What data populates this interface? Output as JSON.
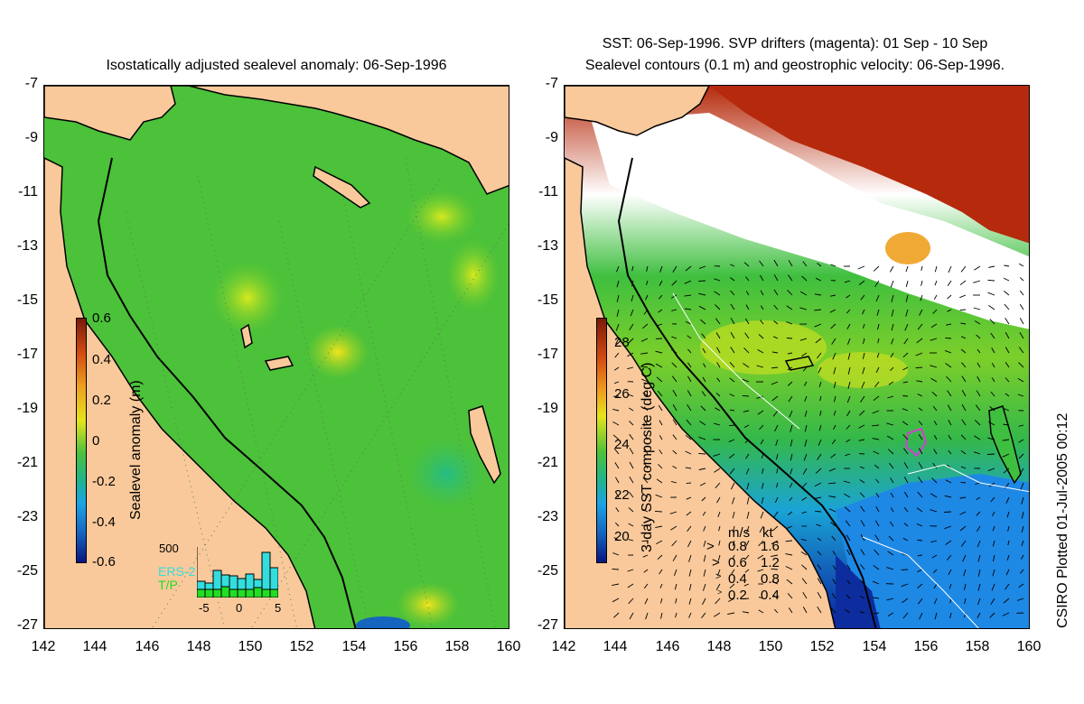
{
  "left_panel": {
    "title": "Isostatically adjusted sealevel anomaly: 06-Sep-1996",
    "colorbar_title": "Sealevel anomaly (m)",
    "colorbar_ticks": [
      "0.6",
      "0.4",
      "0.2",
      "0",
      "-0.2",
      "-0.4",
      "-0.6"
    ],
    "colors": {
      "land": "#f9c99b",
      "ocean": "#4cc13a"
    },
    "inset": {
      "y_label": "500",
      "x_ticks": [
        "-5",
        "0",
        "5"
      ],
      "series": [
        {
          "name": "ERS-2",
          "color": "#33dddd",
          "values": [
            180,
            160,
            300,
            250,
            240,
            210,
            260,
            200,
            500,
            330
          ]
        },
        {
          "name": "T/P",
          "color": "#22dd22",
          "values": [
            90,
            90,
            90,
            120,
            90,
            90,
            90,
            110,
            90,
            90
          ]
        }
      ]
    }
  },
  "right_panel": {
    "title_line1": "SST: 06-Sep-1996. SVP drifters (magenta): 01 Sep - 10 Sep",
    "title_line2": "Sealevel contours (0.1 m) and geostrophic velocity: 06-Sep-1996.",
    "colorbar_title": "3-day SST composite (deg C)",
    "colorbar_ticks": [
      "28",
      "26",
      "24",
      "22",
      "20"
    ],
    "velocity_legend": {
      "header_ms": "m/s",
      "header_kt": "kt",
      "rows": [
        {
          "ms": "0.8",
          "kt": "1.6"
        },
        {
          "ms": "0.6",
          "kt": "1.2"
        },
        {
          "ms": "0.4",
          "kt": "0.8"
        },
        {
          "ms": "0.2",
          "kt": "0.4"
        }
      ]
    }
  },
  "axes": {
    "y_ticks": [
      "-7",
      "-9",
      "-11",
      "-13",
      "-15",
      "-17",
      "-19",
      "-21",
      "-23",
      "-25",
      "-27"
    ],
    "x_ticks": [
      "142",
      "144",
      "146",
      "148",
      "150",
      "152",
      "154",
      "156",
      "158",
      "160"
    ],
    "lon_range": [
      142,
      160
    ],
    "lat_range": [
      -27,
      -7
    ]
  },
  "credit": "CSIRO Plotted 01-Jul-2005 00:12"
}
